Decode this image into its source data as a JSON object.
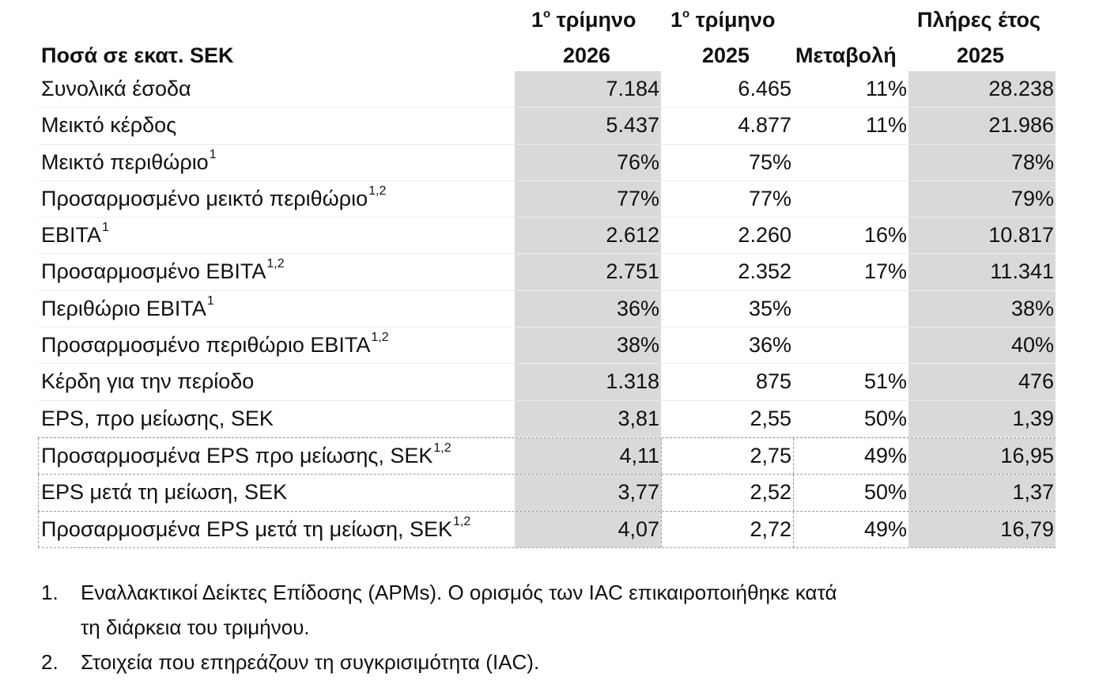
{
  "header": {
    "label_col": "Ποσά σε εκατ. SEK",
    "col1_line1_pre": "1",
    "col1_line1_sup": "ο",
    "col1_line1_post": " τρίμηνο",
    "col1_line2": "2026",
    "col2_line1_pre": "1",
    "col2_line1_sup": "ο",
    "col2_line1_post": " τρίμηνο",
    "col2_line2": "2025",
    "col3": "Μεταβολή",
    "col4_line1": "Πλήρες έτος",
    "col4_line2": "2025"
  },
  "rows": [
    {
      "label": "Συνολικά έσοδα",
      "sup": "",
      "q1_2026": "7.184",
      "q1_2025": "6.465",
      "change": "11%",
      "fy_2025": "28.238"
    },
    {
      "label": "Μεικτό κέρδος",
      "sup": "",
      "q1_2026": "5.437",
      "q1_2025": "4.877",
      "change": "11%",
      "fy_2025": "21.986"
    },
    {
      "label": "Μεικτό περιθώριο",
      "sup": "1",
      "q1_2026": "76%",
      "q1_2025": "75%",
      "change": "",
      "fy_2025": "78%"
    },
    {
      "label": "Προσαρμοσμένο μεικτό περιθώριο",
      "sup": "1,2",
      "q1_2026": "77%",
      "q1_2025": "77%",
      "change": "",
      "fy_2025": "79%"
    },
    {
      "label": "EBITA",
      "sup": "1",
      "q1_2026": "2.612",
      "q1_2025": "2.260",
      "change": "16%",
      "fy_2025": "10.817"
    },
    {
      "label": "Προσαρμοσμένο EBITA",
      "sup": "1,2",
      "q1_2026": "2.751",
      "q1_2025": "2.352",
      "change": "17%",
      "fy_2025": "11.341"
    },
    {
      "label": "Περιθώριο EBITA",
      "sup": "1",
      "q1_2026": "36%",
      "q1_2025": "35%",
      "change": "",
      "fy_2025": "38%"
    },
    {
      "label": "Προσαρμοσμένο περιθώριο EBITA",
      "sup": "1,2",
      "q1_2026": "38%",
      "q1_2025": "36%",
      "change": "",
      "fy_2025": "40%"
    },
    {
      "label": "Κέρδη για την περίοδο",
      "sup": "",
      "q1_2026": "1.318",
      "q1_2025": "875",
      "change": "51%",
      "fy_2025": "476"
    },
    {
      "label": "EPS, προ μείωσης, SEK",
      "sup": "",
      "q1_2026": "3,81",
      "q1_2025": "2,55",
      "change": "50%",
      "fy_2025": "1,39"
    },
    {
      "label": "Προσαρμοσμένα EPS προ μείωσης, SEK",
      "sup": "1,2",
      "q1_2026": "4,11",
      "q1_2025": "2,75",
      "change": "49%",
      "fy_2025": "16,95"
    },
    {
      "label": "EPS μετά τη μείωση, SEK",
      "sup": "",
      "q1_2026": "3,77",
      "q1_2025": "2,52",
      "change": "50%",
      "fy_2025": "1,37"
    },
    {
      "label": "Προσαρμοσμένα EPS μετά τη μείωση, SEK",
      "sup": "1,2",
      "q1_2026": "4,07",
      "q1_2025": "2,72",
      "change": "49%",
      "fy_2025": "16,79"
    }
  ],
  "notes": [
    {
      "num": "1.",
      "line1": "Εναλλακτικοί Δείκτες Επίδοσης (APMs).  Ο ορισμός των IAC επικαιροποιήθηκε κατά",
      "line2": "τη διάρκεια του τριμήνου."
    },
    {
      "num": "2.",
      "line1": "Στοιχεία που επηρεάζουν τη συγκρισιμότητα (IAC).",
      "line2": ""
    }
  ],
  "colors": {
    "shade": "#d9d9d9",
    "text": "#111111"
  }
}
